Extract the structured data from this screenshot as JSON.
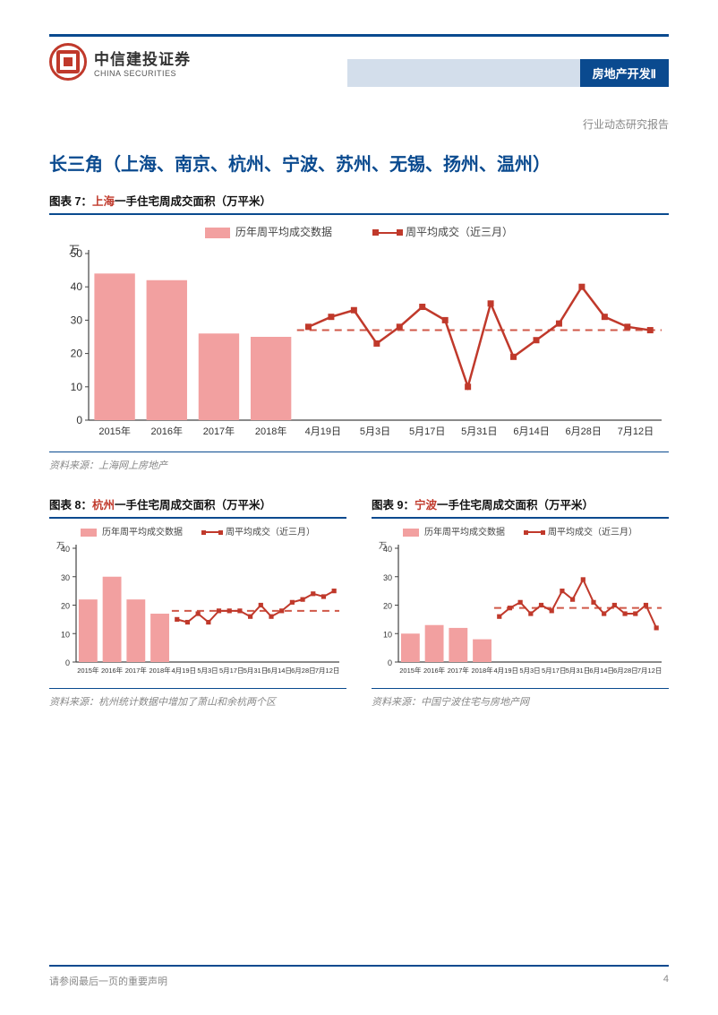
{
  "header": {
    "logo_cn": "中信建投证券",
    "logo_en": "CHINA SECURITIES",
    "tab": "房地产开发Ⅱ",
    "subhead": "行业动态研究报告"
  },
  "section_title": "长三角（上海、南京、杭州、宁波、苏州、无锡、扬州、温州）",
  "palette": {
    "bar": "#f2a0a0",
    "line": "#c0392b",
    "dash": "#d05848",
    "axis": "#444",
    "grid": "#ddd"
  },
  "legends": {
    "bar": "历年周平均成交数据",
    "line": "周平均成交（近三月）"
  },
  "chart7": {
    "fig_num": "图表 7：",
    "city": "上海",
    "rest": "一手住宅周成交面积（万平米）",
    "y_label": "万",
    "ylim": [
      0,
      50
    ],
    "ytick_step": 10,
    "bar_cats": [
      "2015年",
      "2016年",
      "2017年",
      "2018年"
    ],
    "bar_vals": [
      44,
      42,
      26,
      25
    ],
    "line_cats": [
      "4月19日",
      "5月3日",
      "5月17日",
      "5月31日",
      "6月14日",
      "6月28日",
      "7月12日"
    ],
    "line_vals": [
      28,
      31,
      33,
      23,
      28,
      34,
      30,
      10,
      35,
      19,
      24,
      29,
      40,
      31,
      28,
      27
    ],
    "dash_y": 27,
    "source": "资料来源：上海网上房地产"
  },
  "chart8": {
    "fig_num": "图表 8：",
    "city": "杭州",
    "rest": "一手住宅周成交面积（万平米）",
    "y_label": "万",
    "ylim": [
      0,
      40
    ],
    "ytick_step": 10,
    "bar_cats": [
      "2015年",
      "2016年",
      "2017年",
      "2018年"
    ],
    "bar_vals": [
      22,
      30,
      22,
      17
    ],
    "line_cats": [
      "4月19日",
      "5月3日",
      "5月17日",
      "5月31日",
      "6月14日",
      "6月28日",
      "7月12日"
    ],
    "line_vals": [
      15,
      14,
      17,
      14,
      18,
      18,
      18,
      16,
      20,
      16,
      18,
      21,
      22,
      24,
      23,
      25
    ],
    "dash_y": 18,
    "source": "资料来源：杭州统计数据中增加了萧山和余杭两个区"
  },
  "chart9": {
    "fig_num": "图表 9：",
    "city": "宁波",
    "rest": "一手住宅周成交面积（万平米）",
    "y_label": "万",
    "ylim": [
      0,
      40
    ],
    "ytick_step": 10,
    "bar_cats": [
      "2015年",
      "2016年",
      "2017年",
      "2018年"
    ],
    "bar_vals": [
      10,
      13,
      12,
      8
    ],
    "line_cats": [
      "4月19日",
      "5月3日",
      "5月17日",
      "5月31日",
      "6月14日",
      "6月28日",
      "7月12日"
    ],
    "line_vals": [
      16,
      19,
      21,
      17,
      20,
      18,
      25,
      22,
      29,
      21,
      17,
      20,
      17,
      17,
      20,
      12
    ],
    "dash_y": 19,
    "source": "资料来源：中国宁波住宅与房地产网"
  },
  "footer": {
    "left": "请参阅最后一页的重要声明",
    "page": "4"
  }
}
